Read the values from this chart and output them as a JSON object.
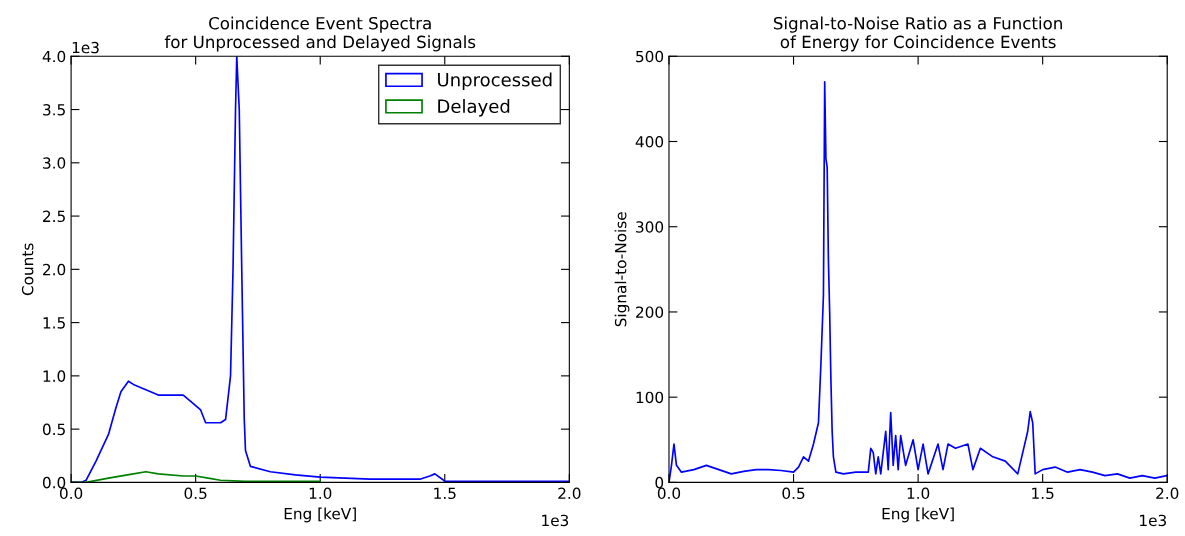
{
  "chart_data": [
    {
      "type": "line",
      "title": "Coincidence Event Spectra\nfor Unprocessed and Delayed Signals",
      "xlabel": "Eng [keV]",
      "ylabel": "Counts",
      "legend": "top right",
      "grid": false,
      "xlim": [
        0,
        2.0
      ],
      "xticks": [
        {
          "value": 0,
          "label": "0.0"
        },
        {
          "value": 0.5,
          "label": "0.5"
        },
        {
          "value": 1,
          "label": "1.0"
        },
        {
          "value": 1.5,
          "label": "1.5"
        },
        {
          "value": 2,
          "label": "2.0"
        }
      ],
      "ylim": [
        0,
        4.0
      ],
      "yticks": [
        {
          "value": 0,
          "label": "0.0"
        },
        {
          "value": 0.5,
          "label": "0.5"
        },
        {
          "value": 1,
          "label": "1.0"
        },
        {
          "value": 1.5,
          "label": "1.5"
        },
        {
          "value": 2,
          "label": "2.0"
        },
        {
          "value": 2.5,
          "label": "2.5"
        },
        {
          "value": 3,
          "label": "3.0"
        },
        {
          "value": 3.5,
          "label": "3.5"
        },
        {
          "value": 4,
          "label": "4.0"
        }
      ],
      "annotations": [
        "1e3",
        "1e3"
      ],
      "series": [
        {
          "name": "Unprocessed",
          "color": "#0000ff",
          "x": [
            0,
            0.04,
            0.06,
            0.1,
            0.15,
            0.18,
            0.2,
            0.23,
            0.25,
            0.3,
            0.35,
            0.4,
            0.45,
            0.48,
            0.52,
            0.54,
            0.6,
            0.62,
            0.64,
            0.65,
            0.66,
            0.665,
            0.675,
            0.685,
            0.695,
            0.7,
            0.72,
            0.8,
            0.9,
            1.0,
            1.1,
            1.2,
            1.3,
            1.4,
            1.44,
            1.46,
            1.49,
            1.5,
            1.6,
            1.8,
            2.0
          ],
          "values": [
            0,
            0,
            0.02,
            0.2,
            0.45,
            0.7,
            0.85,
            0.95,
            0.92,
            0.87,
            0.82,
            0.82,
            0.82,
            0.76,
            0.68,
            0.56,
            0.56,
            0.59,
            1.0,
            2.0,
            3.5,
            4.0,
            3.5,
            2.0,
            0.6,
            0.3,
            0.15,
            0.1,
            0.07,
            0.05,
            0.04,
            0.03,
            0.03,
            0.03,
            0.06,
            0.08,
            0.03,
            0.01,
            0.01,
            0.01,
            0.01
          ]
        },
        {
          "name": "Delayed",
          "color": "#008000",
          "x": [
            0,
            0.06,
            0.15,
            0.25,
            0.3,
            0.35,
            0.45,
            0.5,
            0.55,
            0.6,
            0.7,
            1.0
          ],
          "values": [
            0,
            0,
            0.04,
            0.08,
            0.1,
            0.08,
            0.06,
            0.06,
            0.04,
            0.02,
            0.01,
            0.01
          ]
        }
      ]
    },
    {
      "type": "line",
      "title": "Signal-to-Noise Ratio as a Function\nof Energy for Coincidence Events",
      "xlabel": "Eng [keV]",
      "ylabel": "Signal-to-Noise",
      "grid": false,
      "xlim": [
        0,
        2.0
      ],
      "xticks": [
        {
          "value": 0,
          "label": "0.0"
        },
        {
          "value": 0.5,
          "label": "0.5"
        },
        {
          "value": 1,
          "label": "1.0"
        },
        {
          "value": 1.5,
          "label": "1.5"
        },
        {
          "value": 2,
          "label": "2.0"
        }
      ],
      "ylim": [
        0,
        500
      ],
      "yticks": [
        0,
        100,
        200,
        300,
        400,
        500
      ],
      "annotations": [
        "1e3"
      ],
      "series": [
        {
          "color": "#0000ff",
          "x": [
            0,
            0.01,
            0.02,
            0.03,
            0.05,
            0.1,
            0.15,
            0.2,
            0.25,
            0.3,
            0.35,
            0.4,
            0.45,
            0.5,
            0.52,
            0.54,
            0.56,
            0.58,
            0.6,
            0.61,
            0.62,
            0.625,
            0.63,
            0.635,
            0.64,
            0.645,
            0.65,
            0.655,
            0.66,
            0.67,
            0.7,
            0.75,
            0.8,
            0.81,
            0.82,
            0.83,
            0.84,
            0.85,
            0.87,
            0.88,
            0.89,
            0.9,
            0.91,
            0.92,
            0.93,
            0.95,
            0.98,
            1.0,
            1.02,
            1.04,
            1.08,
            1.1,
            1.12,
            1.15,
            1.2,
            1.22,
            1.25,
            1.3,
            1.35,
            1.4,
            1.42,
            1.44,
            1.45,
            1.46,
            1.47,
            1.5,
            1.55,
            1.6,
            1.65,
            1.7,
            1.75,
            1.8,
            1.85,
            1.9,
            1.95,
            2.0
          ],
          "values": [
            0,
            20,
            45,
            20,
            12,
            15,
            20,
            15,
            10,
            13,
            15,
            15,
            14,
            12,
            18,
            30,
            25,
            45,
            70,
            140,
            220,
            470,
            380,
            370,
            260,
            200,
            120,
            60,
            30,
            12,
            10,
            12,
            12,
            40,
            35,
            10,
            30,
            10,
            60,
            15,
            82,
            20,
            55,
            15,
            55,
            20,
            50,
            15,
            45,
            10,
            45,
            15,
            45,
            40,
            45,
            15,
            40,
            30,
            25,
            10,
            35,
            60,
            83,
            70,
            10,
            15,
            18,
            12,
            15,
            12,
            8,
            10,
            5,
            8,
            5,
            8
          ]
        }
      ]
    }
  ]
}
